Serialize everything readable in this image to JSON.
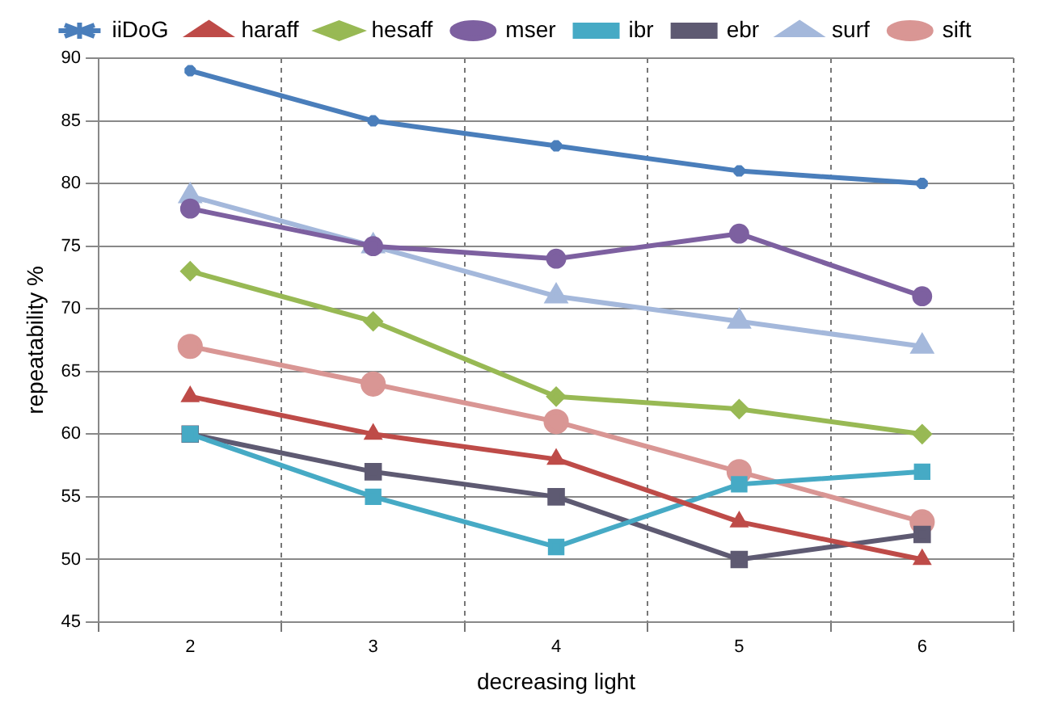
{
  "chart_data": {
    "type": "line",
    "xlabel": "decreasing light",
    "ylabel": "repeatability %",
    "categories": [
      "2",
      "3",
      "4",
      "5",
      "6"
    ],
    "series": [
      {
        "name": "iiDoG",
        "color": "#4a7ebb",
        "marker": "cross",
        "values": [
          89,
          85,
          83,
          81,
          80
        ]
      },
      {
        "name": "haraff",
        "color": "#be4b48",
        "marker": "triangle",
        "values": [
          63,
          60,
          58,
          53,
          50
        ]
      },
      {
        "name": "hesaff",
        "color": "#98b954",
        "marker": "diamond",
        "values": [
          73,
          69,
          63,
          62,
          60
        ]
      },
      {
        "name": "mser",
        "color": "#7d60a0",
        "marker": "circle",
        "values": [
          78,
          75,
          74,
          76,
          71
        ]
      },
      {
        "name": "ibr",
        "color": "#46aac5",
        "marker": "square",
        "values": [
          60,
          55,
          51,
          56,
          57
        ]
      },
      {
        "name": "ebr",
        "color": "#5e5a72",
        "marker": "square",
        "values": [
          60,
          57,
          55,
          50,
          52
        ]
      },
      {
        "name": "surf",
        "color": "#a4b8db",
        "marker": "triangle",
        "values": [
          79,
          75,
          71,
          69,
          67
        ]
      },
      {
        "name": "sift",
        "color": "#d99694",
        "marker": "circle",
        "values": [
          67,
          64,
          61,
          57,
          53
        ]
      }
    ],
    "ylim": [
      45,
      90
    ],
    "yticks": [
      45,
      50,
      55,
      60,
      65,
      70,
      75,
      80,
      85,
      90
    ],
    "grid": true,
    "legend": "top"
  }
}
